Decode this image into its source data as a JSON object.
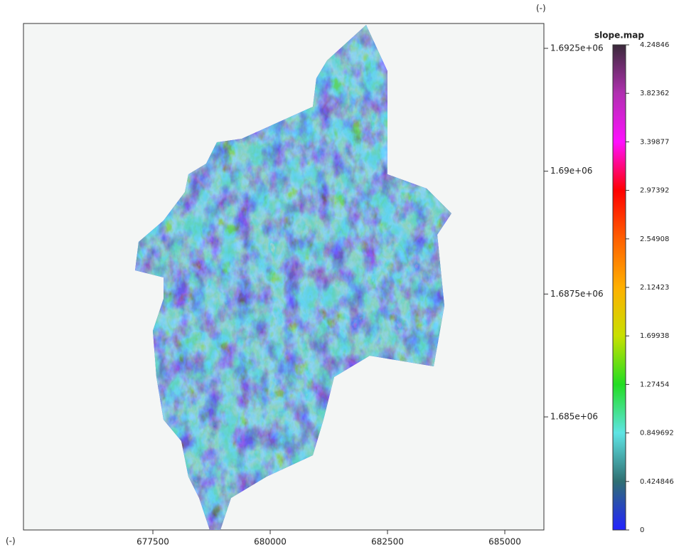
{
  "map": {
    "x_unit": "(-)",
    "y_unit": "(-)",
    "xlim": [
      674742,
      685833
    ],
    "xticks": [
      677500,
      680000,
      682500,
      685000
    ],
    "ylim": [
      1682699,
      1693006
    ],
    "yticks": [
      {
        "value": 1685000,
        "label": "1.685e+06"
      },
      {
        "value": 1687500,
        "label": "1.6875e+06"
      },
      {
        "value": 1690000,
        "label": "1.69e+06"
      },
      {
        "value": 1692500,
        "label": "1.6925e+06"
      }
    ],
    "colorbar": {
      "title": "slope.map",
      "lim": [
        0,
        4.24846
      ],
      "ticks": [
        0,
        0.424846,
        0.849692,
        1.27454,
        1.69938,
        2.12423,
        2.54908,
        2.97392,
        3.39877,
        3.82362,
        4.24846
      ],
      "colormap": [
        "#2222ff",
        "#2f6f72",
        "#5ee4e4",
        "#22dd22",
        "#c8e000",
        "#ffb000",
        "#ff6000",
        "#ff0000",
        "#ff10ff",
        "#b030b0",
        "#3a2a3a"
      ]
    }
  }
}
